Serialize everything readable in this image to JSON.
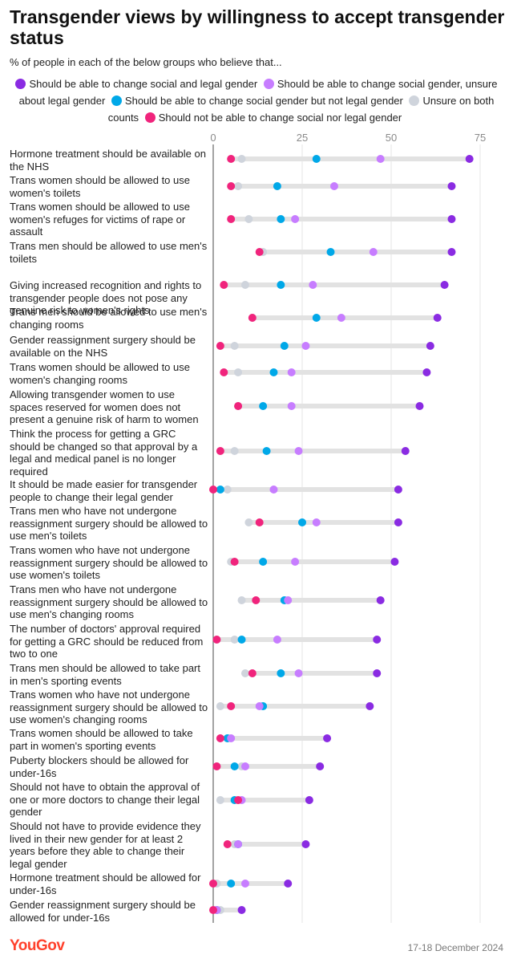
{
  "chart_data": {
    "type": "dumbbell",
    "title": "Transgender views by willingness to accept transgender status",
    "subtitle": "% of people in each of the below groups who believe that...",
    "xlim": [
      0,
      80
    ],
    "x_ticks": [
      0,
      25,
      50,
      75
    ],
    "grid": true,
    "legend_position": "top",
    "series": [
      {
        "name": "Should be able to change social and legal gender",
        "color": "#8a2be2"
      },
      {
        "name": "Should be able to change social gender, unsure about legal gender",
        "color": "#c77dff"
      },
      {
        "name": "Should be able to change social gender but not legal gender",
        "color": "#00a8e8"
      },
      {
        "name": "Unsure on both counts",
        "color": "#cfd4dc"
      },
      {
        "name": "Should not be able to change social nor legal gender",
        "color": "#f0247c"
      }
    ],
    "rows": [
      {
        "label": "Hormone treatment should be available on the NHS",
        "values": [
          72,
          47,
          29,
          8,
          5
        ]
      },
      {
        "label": "Trans women should be allowed to use women's toilets",
        "values": [
          67,
          34,
          18,
          7,
          5
        ]
      },
      {
        "label": "Trans women should be allowed to use women's refuges for victims of rape or assault",
        "values": [
          67,
          23,
          19,
          10,
          5
        ]
      },
      {
        "label": "Trans men should be allowed to use men's toilets",
        "values": [
          67,
          45,
          33,
          14,
          13
        ]
      },
      {
        "label": "Giving increased recognition and rights to transgender people does not pose any genuine risk to women's rights",
        "values": [
          65,
          28,
          19,
          9,
          3
        ]
      },
      {
        "label": "Trans men should be allowed to use men's changing rooms",
        "values": [
          63,
          36,
          29,
          11,
          11
        ]
      },
      {
        "label": "Gender reassignment surgery should be available on the NHS",
        "values": [
          61,
          26,
          20,
          6,
          2
        ]
      },
      {
        "label": "Trans women should be allowed to use women's changing rooms",
        "values": [
          60,
          22,
          17,
          7,
          3
        ]
      },
      {
        "label": "Allowing transgender women to use spaces reserved for women does not present a genuine risk of harm to women",
        "values": [
          58,
          22,
          14,
          7,
          7
        ]
      },
      {
        "label": "Think the process for getting a GRC should be changed so that approval by a legal and medical panel is no longer required",
        "values": [
          54,
          24,
          15,
          6,
          2
        ]
      },
      {
        "label": "It should be made easier for transgender people to change their legal gender",
        "values": [
          52,
          17,
          2,
          4,
          0
        ]
      },
      {
        "label": "Trans men who have not undergone reassignment surgery should be allowed to use men's toilets",
        "values": [
          52,
          29,
          25,
          10,
          13
        ]
      },
      {
        "label": "Trans women who have not undergone reassignment surgery should be allowed to use women's toilets",
        "values": [
          51,
          23,
          14,
          5,
          6
        ]
      },
      {
        "label": "Trans men who have not undergone reassignment surgery should be allowed to use men's changing rooms",
        "values": [
          47,
          21,
          20,
          8,
          12
        ]
      },
      {
        "label": "The number of doctors' approval required for getting a GRC should be reduced from two to one",
        "values": [
          46,
          18,
          8,
          6,
          1
        ]
      },
      {
        "label": "Trans men should be allowed to take part in men's sporting events",
        "values": [
          46,
          24,
          19,
          9,
          11
        ]
      },
      {
        "label": "Trans women who have not undergone reassignment surgery should be allowed to use women's changing rooms",
        "values": [
          44,
          13,
          14,
          2,
          5
        ]
      },
      {
        "label": "Trans women should be allowed to take part in women's sporting events",
        "values": [
          32,
          5,
          4,
          4,
          2
        ]
      },
      {
        "label": "Puberty blockers should be allowed for under-16s",
        "values": [
          30,
          9,
          6,
          8,
          1
        ]
      },
      {
        "label": "Should not have to obtain the approval of one or more doctors to change their legal gender",
        "values": [
          27,
          8,
          6,
          2,
          7
        ]
      },
      {
        "label": "Should not have to provide evidence they lived in their new gender for at least 2 years before they able to change their legal gender",
        "values": [
          26,
          7,
          7,
          6,
          4
        ]
      },
      {
        "label": "Hormone treatment should be allowed for under-16s",
        "values": [
          21,
          9,
          5,
          1,
          0
        ]
      },
      {
        "label": "Gender reassignment surgery should be allowed for under-16s",
        "values": [
          8,
          1,
          1,
          2,
          0
        ]
      }
    ]
  },
  "footer": {
    "brand": "YouGov",
    "date": "17-18 December 2024"
  }
}
